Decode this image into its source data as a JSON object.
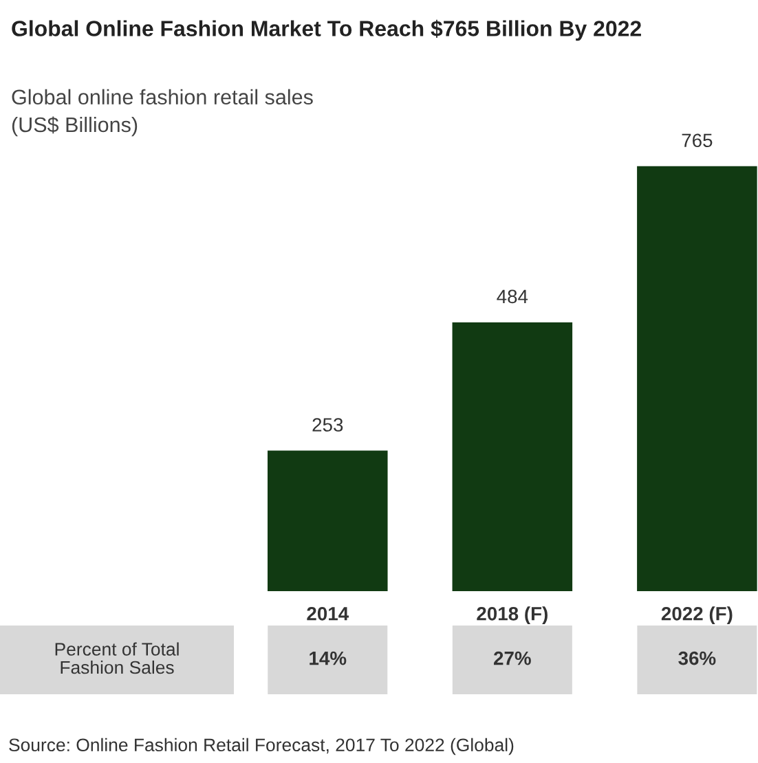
{
  "chart_data": {
    "type": "bar",
    "title": "Global Online Fashion Market To Reach $765 Billion By 2022",
    "subtitle": "Global online fashion retail sales\n(US$ Billions)",
    "categories": [
      "2014",
      "2018 (F)",
      "2022 (F)"
    ],
    "values": [
      253,
      484,
      765
    ],
    "color": "#113a12",
    "tick_labels": "x",
    "data_labels": true,
    "grid": false,
    "legend": false,
    "annotations": [
      "Percent of Total\nFashion Sales",
      "14%",
      "27%",
      "36%",
      "Source: Online Fashion Retail Forecast, 2017 To 2022 (Global)"
    ]
  }
}
